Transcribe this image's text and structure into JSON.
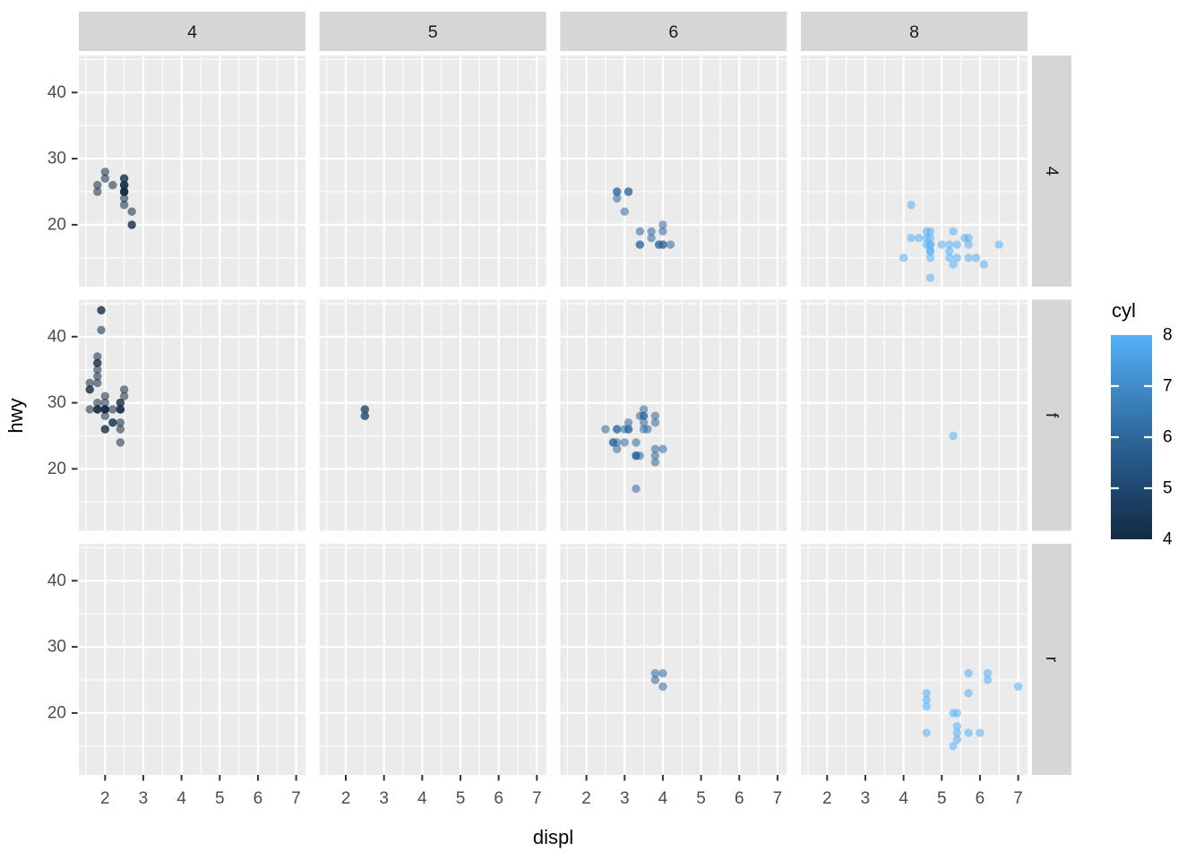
{
  "chart_data": {
    "type": "scatter",
    "xlabel": "displ",
    "ylabel": "hwy",
    "facet": {
      "col_var": "cyl",
      "row_var": "drv",
      "cols": [
        "4",
        "5",
        "6",
        "8"
      ],
      "rows": [
        "4",
        "f",
        "r"
      ]
    },
    "x_ticks": [
      2,
      3,
      4,
      5,
      6,
      7
    ],
    "y_ticks": [
      40,
      30,
      20
    ],
    "x_minor": [
      1.5,
      2.5,
      3.5,
      4.5,
      5.5,
      6.5
    ],
    "y_minor": [
      45,
      35,
      25,
      15
    ],
    "x_domain": [
      1.33,
      7.27
    ],
    "y_domain": [
      10.6,
      45.6
    ],
    "legend": {
      "title": "cyl",
      "ticks": [
        8,
        7,
        6,
        5,
        4
      ],
      "high_color": "#56B1F7",
      "mid_colors": [
        "#408BCA",
        "#2E679C",
        "#1E476F"
      ],
      "low_color": "#132B43"
    },
    "point_colors": {
      "4": "#132B43",
      "5": "#1E476F",
      "6": "#2E679C",
      "8": "#56B1F7"
    },
    "point_alpha": 0.55,
    "theme": {
      "panel_bg": "#EBEBEB",
      "strip_bg": "#D6D6D6",
      "grid": "#FFFFFF",
      "tick_label": "#4D4D4D",
      "tick_mark": "#333333",
      "strip_text": "#1A1A1A"
    },
    "facets": [
      {
        "cyl": "4",
        "drv": "4",
        "points": [
          [
            1.8,
            26
          ],
          [
            1.8,
            25
          ],
          [
            2.0,
            28
          ],
          [
            2.0,
            27
          ],
          [
            2.2,
            26
          ],
          [
            2.5,
            27
          ],
          [
            2.5,
            27
          ],
          [
            2.5,
            26
          ],
          [
            2.5,
            26
          ],
          [
            2.5,
            26
          ],
          [
            2.5,
            25
          ],
          [
            2.5,
            25
          ],
          [
            2.5,
            25
          ],
          [
            2.5,
            25
          ],
          [
            2.5,
            24
          ],
          [
            2.5,
            23
          ],
          [
            2.7,
            22
          ],
          [
            2.7,
            20
          ],
          [
            2.7,
            20
          ]
        ]
      },
      {
        "cyl": "5",
        "drv": "4",
        "points": []
      },
      {
        "cyl": "6",
        "drv": "4",
        "points": [
          [
            2.8,
            25
          ],
          [
            2.8,
            25
          ],
          [
            3.1,
            25
          ],
          [
            3.1,
            25
          ],
          [
            2.8,
            24
          ],
          [
            3.0,
            22
          ],
          [
            3.4,
            19
          ],
          [
            3.7,
            19
          ],
          [
            3.7,
            18
          ],
          [
            4.0,
            20
          ],
          [
            4.0,
            19
          ],
          [
            3.4,
            17
          ],
          [
            3.4,
            17
          ],
          [
            3.9,
            17
          ],
          [
            3.9,
            17
          ],
          [
            4.0,
            17
          ],
          [
            4.0,
            17
          ],
          [
            4.2,
            17
          ]
        ]
      },
      {
        "cyl": "8",
        "drv": "4",
        "points": [
          [
            4.2,
            23
          ],
          [
            4.0,
            15
          ],
          [
            4.2,
            18
          ],
          [
            4.4,
            18
          ],
          [
            4.6,
            19
          ],
          [
            4.7,
            19
          ],
          [
            4.6,
            18
          ],
          [
            4.7,
            18
          ],
          [
            4.6,
            17
          ],
          [
            4.7,
            17
          ],
          [
            4.7,
            17
          ],
          [
            4.7,
            16
          ],
          [
            4.7,
            16
          ],
          [
            4.7,
            15
          ],
          [
            4.7,
            12
          ],
          [
            5.0,
            17
          ],
          [
            5.2,
            17
          ],
          [
            5.4,
            17
          ],
          [
            5.3,
            19
          ],
          [
            5.2,
            16
          ],
          [
            5.2,
            15
          ],
          [
            5.4,
            15
          ],
          [
            5.3,
            14
          ],
          [
            5.6,
            18
          ],
          [
            5.7,
            18
          ],
          [
            5.7,
            17
          ],
          [
            5.7,
            15
          ],
          [
            5.9,
            15
          ],
          [
            6.1,
            14
          ],
          [
            6.5,
            17
          ]
        ]
      },
      {
        "cyl": "4",
        "drv": "f",
        "points": [
          [
            1.9,
            44
          ],
          [
            1.9,
            44
          ],
          [
            1.9,
            41
          ],
          [
            1.6,
            33
          ],
          [
            1.6,
            32
          ],
          [
            1.6,
            32
          ],
          [
            1.6,
            29
          ],
          [
            1.8,
            37
          ],
          [
            1.8,
            36
          ],
          [
            1.8,
            36
          ],
          [
            1.8,
            35
          ],
          [
            1.8,
            34
          ],
          [
            1.8,
            33
          ],
          [
            1.8,
            30
          ],
          [
            1.8,
            29
          ],
          [
            1.8,
            29
          ],
          [
            1.8,
            29
          ],
          [
            2.0,
            31
          ],
          [
            2.0,
            30
          ],
          [
            2.0,
            29
          ],
          [
            2.0,
            29
          ],
          [
            2.0,
            29
          ],
          [
            2.0,
            29
          ],
          [
            2.0,
            28
          ],
          [
            2.0,
            26
          ],
          [
            2.0,
            26
          ],
          [
            2.2,
            29
          ],
          [
            2.2,
            27
          ],
          [
            2.2,
            27
          ],
          [
            2.4,
            30
          ],
          [
            2.4,
            30
          ],
          [
            2.4,
            29
          ],
          [
            2.4,
            29
          ],
          [
            2.4,
            29
          ],
          [
            2.4,
            27
          ],
          [
            2.4,
            26
          ],
          [
            2.4,
            24
          ],
          [
            2.5,
            32
          ],
          [
            2.5,
            31
          ]
        ]
      },
      {
        "cyl": "5",
        "drv": "f",
        "points": [
          [
            2.5,
            29
          ],
          [
            2.5,
            29
          ],
          [
            2.5,
            28
          ],
          [
            2.5,
            28
          ]
        ]
      },
      {
        "cyl": "6",
        "drv": "f",
        "points": [
          [
            2.5,
            26
          ],
          [
            2.8,
            26
          ],
          [
            2.8,
            26
          ],
          [
            3.0,
            26
          ],
          [
            3.1,
            26
          ],
          [
            3.1,
            26
          ],
          [
            3.1,
            27
          ],
          [
            3.5,
            29
          ],
          [
            3.4,
            28
          ],
          [
            3.5,
            28
          ],
          [
            3.5,
            28
          ],
          [
            3.8,
            28
          ],
          [
            3.5,
            27
          ],
          [
            3.8,
            27
          ],
          [
            3.5,
            26
          ],
          [
            3.6,
            26
          ],
          [
            2.7,
            24
          ],
          [
            2.7,
            24
          ],
          [
            2.8,
            24
          ],
          [
            2.8,
            23
          ],
          [
            3.0,
            24
          ],
          [
            3.3,
            24
          ],
          [
            3.3,
            22
          ],
          [
            3.3,
            22
          ],
          [
            3.3,
            22
          ],
          [
            3.4,
            22
          ],
          [
            3.8,
            23
          ],
          [
            4.0,
            23
          ],
          [
            3.8,
            22
          ],
          [
            3.8,
            21
          ],
          [
            3.3,
            17
          ]
        ]
      },
      {
        "cyl": "8",
        "drv": "f",
        "points": [
          [
            5.3,
            25
          ]
        ]
      },
      {
        "cyl": "4",
        "drv": "r",
        "points": []
      },
      {
        "cyl": "5",
        "drv": "r",
        "points": []
      },
      {
        "cyl": "6",
        "drv": "r",
        "points": [
          [
            3.8,
            26
          ],
          [
            4.0,
            26
          ],
          [
            3.8,
            25
          ],
          [
            4.0,
            24
          ]
        ]
      },
      {
        "cyl": "8",
        "drv": "r",
        "points": [
          [
            4.6,
            23
          ],
          [
            4.6,
            22
          ],
          [
            4.6,
            21
          ],
          [
            4.6,
            17
          ],
          [
            5.3,
            20
          ],
          [
            5.4,
            20
          ],
          [
            5.3,
            15
          ],
          [
            5.4,
            18
          ],
          [
            5.4,
            17
          ],
          [
            5.4,
            16
          ],
          [
            5.7,
            26
          ],
          [
            5.7,
            23
          ],
          [
            5.7,
            17
          ],
          [
            6.0,
            17
          ],
          [
            6.2,
            26
          ],
          [
            6.2,
            25
          ],
          [
            7.0,
            24
          ]
        ]
      }
    ]
  }
}
